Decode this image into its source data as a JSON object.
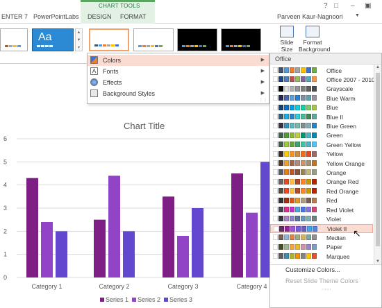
{
  "ribbon": {
    "tabs": [
      {
        "label": "ENTER 7"
      },
      {
        "label": "PowerPointLabs"
      },
      {
        "label": "DESIGN"
      },
      {
        "label": "FORMAT"
      }
    ],
    "contextual_group": "CHART TOOLS",
    "user": "Parveen Kaur-Nagnoori",
    "window_controls": [
      "?",
      "□",
      "–",
      "▣"
    ],
    "theme_thumb_text": "Aa",
    "slide_size_label": "Slide Size",
    "format_bg_label": "Format Background"
  },
  "variants_menu": {
    "items": [
      {
        "label": "Colors",
        "icon": "colors-icon"
      },
      {
        "label": "Fonts",
        "icon": "fonts-icon"
      },
      {
        "label": "Effects",
        "icon": "effects-icon"
      },
      {
        "label": "Background Styles",
        "icon": "background-styles-icon"
      }
    ],
    "active_index": 0
  },
  "colors_menu": {
    "header": "Office",
    "schemes": [
      {
        "name": "Office",
        "colors": [
          "#ffffff",
          "#44546a",
          "#5b9bd5",
          "#ed7d31",
          "#a5a5a5",
          "#ffc000",
          "#4472c4",
          "#70ad47"
        ]
      },
      {
        "name": "Office 2007 - 2010",
        "colors": [
          "#ffffff",
          "#1f497d",
          "#4f81bd",
          "#c0504d",
          "#9bbb59",
          "#8064a2",
          "#4bacc6",
          "#f79646"
        ]
      },
      {
        "name": "Grayscale",
        "colors": [
          "#ffffff",
          "#000000",
          "#dddddd",
          "#b2b2b2",
          "#969696",
          "#808080",
          "#5f5f5f",
          "#4d4d4d"
        ]
      },
      {
        "name": "Blue Warm",
        "colors": [
          "#ffffff",
          "#242852",
          "#4a66ac",
          "#629dd1",
          "#297fd5",
          "#7f8fa9",
          "#5aa2ae",
          "#9d90a0"
        ]
      },
      {
        "name": "Blue",
        "colors": [
          "#ffffff",
          "#17406d",
          "#0f6fc6",
          "#009dd9",
          "#0bd0d9",
          "#10cf9b",
          "#7cca62",
          "#a5c249"
        ]
      },
      {
        "name": "Blue II",
        "colors": [
          "#ffffff",
          "#335b74",
          "#1cade4",
          "#2683c6",
          "#27ced7",
          "#42ba97",
          "#3e8853",
          "#62a39f"
        ]
      },
      {
        "name": "Blue Green",
        "colors": [
          "#ffffff",
          "#373545",
          "#3494ba",
          "#58b6c0",
          "#75bda7",
          "#7a8c8e",
          "#84acb6",
          "#2683c6"
        ]
      },
      {
        "name": "Green",
        "colors": [
          "#ffffff",
          "#455f51",
          "#549e39",
          "#8ab833",
          "#c0cf3a",
          "#029676",
          "#4ab5c4",
          "#0989b1"
        ]
      },
      {
        "name": "Green Yellow",
        "colors": [
          "#ffffff",
          "#455f51",
          "#99cb38",
          "#63a537",
          "#37a76f",
          "#44c1a3",
          "#4eb3cf",
          "#51c3f9"
        ]
      },
      {
        "name": "Yellow",
        "colors": [
          "#ffffff",
          "#39302a",
          "#ffca08",
          "#f8931d",
          "#ce8d3e",
          "#ec7016",
          "#e64823",
          "#9c6a6a"
        ]
      },
      {
        "name": "Yellow Orange",
        "colors": [
          "#ffffff",
          "#4e3b30",
          "#f0a22e",
          "#a5644e",
          "#b58b80",
          "#c3986d",
          "#a19574",
          "#c17529"
        ]
      },
      {
        "name": "Orange",
        "colors": [
          "#ffffff",
          "#575f6d",
          "#e48312",
          "#bd582c",
          "#865640",
          "#9b8357",
          "#c2bc80",
          "#94a088"
        ]
      },
      {
        "name": "Orange Red",
        "colors": [
          "#ffffff",
          "#696464",
          "#e84c22",
          "#ffbd47",
          "#b64926",
          "#ff8427",
          "#cc9900",
          "#b22600"
        ]
      },
      {
        "name": "Red Orange",
        "colors": [
          "#ffffff",
          "#505046",
          "#e84c22",
          "#ffbd47",
          "#b64926",
          "#ff8427",
          "#cc9900",
          "#b22600"
        ]
      },
      {
        "name": "Red",
        "colors": [
          "#ffffff",
          "#323232",
          "#a5300f",
          "#d55816",
          "#e19825",
          "#b19c7d",
          "#7f5f52",
          "#b27d49"
        ]
      },
      {
        "name": "Red Violet",
        "colors": [
          "#ffffff",
          "#454551",
          "#e32d91",
          "#c830cc",
          "#4ea6dc",
          "#4775e7",
          "#8971e1",
          "#d54773"
        ]
      },
      {
        "name": "Violet",
        "colors": [
          "#ffffff",
          "#373545",
          "#ad84c6",
          "#8784c7",
          "#5d739a",
          "#6997af",
          "#84acb6",
          "#6f8183"
        ]
      },
      {
        "name": "Violet II",
        "colors": [
          "#ffffff",
          "#632e62",
          "#92278f",
          "#9b57d3",
          "#755dd9",
          "#665eb8",
          "#45a5ed",
          "#5982db"
        ]
      },
      {
        "name": "Median",
        "colors": [
          "#ffffff",
          "#775f55",
          "#94b6d2",
          "#dd8047",
          "#a5ab81",
          "#d8b25c",
          "#7ba79d",
          "#968c8c"
        ]
      },
      {
        "name": "Paper",
        "colors": [
          "#ffffff",
          "#444d26",
          "#a5b592",
          "#f3a447",
          "#e7bc29",
          "#d092a7",
          "#9c85c0",
          "#809ec2"
        ]
      },
      {
        "name": "Marquee",
        "colors": [
          "#ffffff",
          "#5e5e5e",
          "#418ab3",
          "#a6b727",
          "#f69200",
          "#838383",
          "#fec306",
          "#df5327"
        ]
      }
    ],
    "hover_index": 17,
    "customize_label": "Customize Colors...",
    "reset_label": "Reset Slide Theme Colors"
  },
  "chart_data": {
    "type": "bar",
    "title": "Chart Title",
    "categories": [
      "Category 1",
      "Category 2",
      "Category 3",
      "Category 4"
    ],
    "series": [
      {
        "name": "Series 1",
        "color": "#7e1f86",
        "values": [
          4.3,
          2.5,
          3.5,
          4.5
        ]
      },
      {
        "name": "Series 2",
        "color": "#9145c6",
        "values": [
          2.4,
          4.4,
          1.8,
          2.8
        ]
      },
      {
        "name": "Series 3",
        "color": "#6347cf",
        "values": [
          2.0,
          2.0,
          3.0,
          5.0
        ]
      }
    ],
    "ylim": [
      0,
      6
    ],
    "yticks": [
      "0",
      "1",
      "2",
      "3",
      "4",
      "5",
      "6"
    ],
    "grid": true,
    "legend": "bottom"
  }
}
